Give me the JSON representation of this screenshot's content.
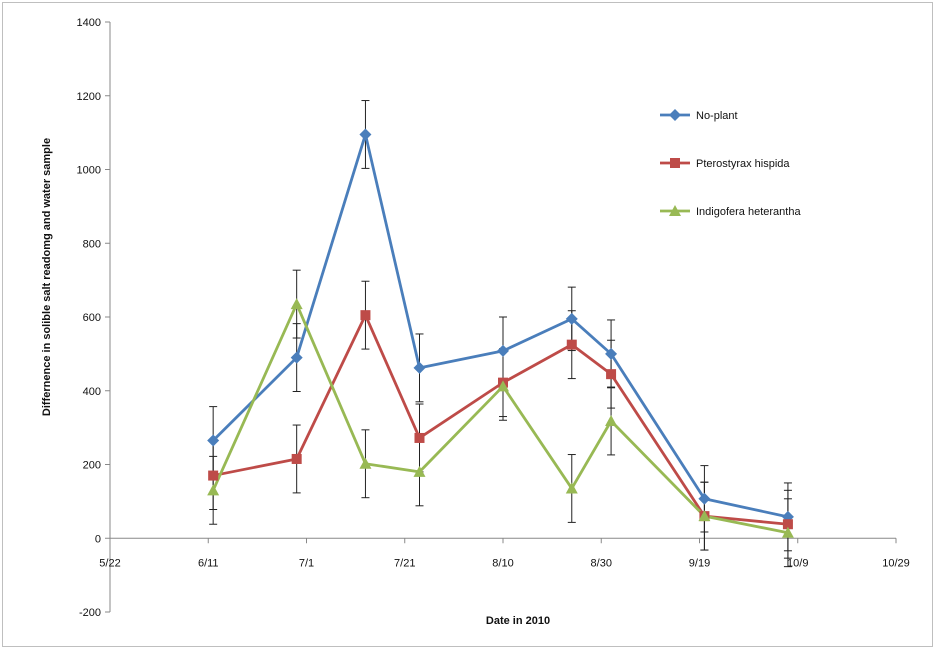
{
  "chart_data": {
    "type": "line",
    "xlabel": "Date in 2010",
    "ylabel": "Differnence in solible salt readomg and water sample",
    "ylim": [
      -200,
      1400
    ],
    "yticks": [
      -200,
      0,
      200,
      400,
      600,
      800,
      1000,
      1200,
      1400
    ],
    "xticks": [
      {
        "date": "2010-05-22",
        "label": "5/22"
      },
      {
        "date": "2010-06-11",
        "label": "6/11"
      },
      {
        "date": "2010-07-01",
        "label": "7/1"
      },
      {
        "date": "2010-07-21",
        "label": "7/21"
      },
      {
        "date": "2010-08-10",
        "label": "8/10"
      },
      {
        "date": "2010-08-30",
        "label": "8/30"
      },
      {
        "date": "2010-09-19",
        "label": "9/19"
      },
      {
        "date": "2010-10-09",
        "label": "10/9"
      },
      {
        "date": "2010-10-29",
        "label": "10/29"
      }
    ],
    "xlim": [
      "2010-05-22",
      "2010-10-29"
    ],
    "grid": false,
    "legend_position": "top-right",
    "x": [
      "2010-06-12",
      "2010-06-29",
      "2010-07-13",
      "2010-07-24",
      "2010-08-10",
      "2010-08-24",
      "2010-09-01",
      "2010-09-20",
      "2010-10-07"
    ],
    "series": [
      {
        "name": "No-plant",
        "color": "#4a7ebb",
        "marker": "diamond",
        "values": [
          265,
          490,
          1095,
          462,
          508,
          595,
          500,
          107,
          58
        ],
        "errors": [
          92,
          92,
          92,
          92,
          92,
          86,
          92,
          90,
          92
        ]
      },
      {
        "name": "Pterostyrax hispida",
        "color": "#be4b48",
        "marker": "square",
        "values": [
          170,
          215,
          605,
          272,
          422,
          525,
          445,
          60,
          38
        ],
        "errors": [
          92,
          92,
          92,
          92,
          92,
          92,
          92,
          92,
          92
        ]
      },
      {
        "name": "Indigofera heterantha",
        "color": "#98b954",
        "marker": "triangle",
        "values": [
          130,
          635,
          202,
          180,
          412,
          135,
          318,
          60,
          15
        ],
        "errors": [
          92,
          92,
          92,
          92,
          92,
          92,
          92,
          92,
          92
        ]
      }
    ]
  }
}
